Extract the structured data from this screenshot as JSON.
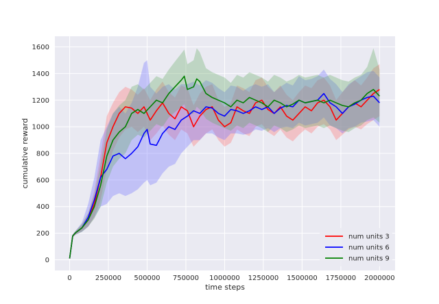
{
  "chart_data": {
    "type": "line",
    "title": "",
    "xlabel": "time steps",
    "ylabel": "cumulative reward",
    "xlim": [
      -95000,
      2100000
    ],
    "ylim": [
      -80,
      1680
    ],
    "x_ticks": [
      0,
      250000,
      500000,
      750000,
      1000000,
      1250000,
      1500000,
      1750000,
      2000000
    ],
    "y_ticks": [
      0,
      200,
      400,
      600,
      800,
      1000,
      1200,
      1400,
      1600
    ],
    "grid": true,
    "legend_position": "bottom-right",
    "series": [
      {
        "name": "num units 3",
        "color": "#ff0000",
        "band_color": "#ff6b6b",
        "x": [
          0,
          20000,
          40000,
          80000,
          120000,
          160000,
          200000,
          240000,
          280000,
          320000,
          360000,
          400000,
          440000,
          480000,
          520000,
          560000,
          600000,
          640000,
          680000,
          720000,
          760000,
          800000,
          840000,
          880000,
          920000,
          960000,
          1000000,
          1040000,
          1080000,
          1120000,
          1160000,
          1200000,
          1240000,
          1280000,
          1320000,
          1360000,
          1400000,
          1440000,
          1480000,
          1520000,
          1560000,
          1600000,
          1640000,
          1680000,
          1720000,
          1760000,
          1800000,
          1840000,
          1880000,
          1920000,
          1960000,
          2000000
        ],
        "y": [
          10,
          180,
          205,
          240,
          300,
          420,
          620,
          880,
          1000,
          1100,
          1150,
          1140,
          1100,
          1150,
          1050,
          1120,
          1180,
          1100,
          1060,
          1150,
          1120,
          1000,
          1080,
          1130,
          1150,
          1050,
          1000,
          1030,
          1150,
          1120,
          1100,
          1180,
          1200,
          1130,
          1100,
          1150,
          1080,
          1050,
          1100,
          1150,
          1120,
          1180,
          1200,
          1150,
          1050,
          1100,
          1150,
          1180,
          1150,
          1200,
          1250,
          1280
        ],
        "y_lower": [
          5,
          170,
          190,
          215,
          250,
          320,
          450,
          680,
          820,
          920,
          980,
          1000,
          960,
          1000,
          900,
          950,
          1010,
          940,
          900,
          980,
          950,
          850,
          900,
          950,
          980,
          900,
          850,
          880,
          980,
          950,
          930,
          1000,
          1020,
          960,
          930,
          980,
          920,
          890,
          940,
          980,
          950,
          1000,
          1020,
          980,
          900,
          940,
          980,
          1000,
          980,
          1020,
          1050,
          1080
        ],
        "y_upper": [
          15,
          190,
          215,
          265,
          350,
          520,
          790,
          1080,
          1180,
          1260,
          1300,
          1280,
          1240,
          1290,
          1200,
          1280,
          1340,
          1260,
          1220,
          1310,
          1290,
          1160,
          1250,
          1300,
          1320,
          1200,
          1150,
          1180,
          1310,
          1290,
          1260,
          1350,
          1370,
          1300,
          1260,
          1310,
          1240,
          1200,
          1260,
          1310,
          1290,
          1350,
          1370,
          1310,
          1200,
          1260,
          1310,
          1350,
          1310,
          1370,
          1440,
          1470
        ]
      },
      {
        "name": "num units 6",
        "color": "#0000ff",
        "band_color": "#6b6bff",
        "x": [
          0,
          20000,
          40000,
          80000,
          120000,
          160000,
          200000,
          240000,
          280000,
          320000,
          360000,
          400000,
          440000,
          480000,
          500000,
          520000,
          560000,
          600000,
          640000,
          680000,
          720000,
          760000,
          800000,
          840000,
          880000,
          920000,
          960000,
          1000000,
          1040000,
          1080000,
          1120000,
          1160000,
          1200000,
          1240000,
          1280000,
          1320000,
          1360000,
          1400000,
          1440000,
          1480000,
          1520000,
          1560000,
          1600000,
          1640000,
          1680000,
          1720000,
          1760000,
          1800000,
          1840000,
          1880000,
          1920000,
          1960000,
          2000000
        ],
        "y": [
          10,
          180,
          205,
          240,
          320,
          450,
          620,
          680,
          780,
          800,
          760,
          800,
          850,
          950,
          980,
          870,
          860,
          950,
          1000,
          980,
          1050,
          1080,
          1120,
          1100,
          1150,
          1140,
          1100,
          1080,
          1130,
          1120,
          1100,
          1120,
          1150,
          1130,
          1150,
          1100,
          1140,
          1160,
          1150,
          1200,
          1180,
          1190,
          1200,
          1250,
          1180,
          1150,
          1100,
          1150,
          1170,
          1200,
          1220,
          1230,
          1180
        ],
        "y_lower": [
          5,
          170,
          190,
          210,
          250,
          320,
          400,
          420,
          480,
          500,
          480,
          500,
          530,
          580,
          600,
          560,
          580,
          650,
          700,
          720,
          800,
          850,
          900,
          900,
          950,
          950,
          920,
          900,
          950,
          950,
          940,
          950,
          980,
          970,
          990,
          960,
          990,
          1000,
          990,
          1030,
          1010,
          1020,
          1030,
          1070,
          1010,
          990,
          950,
          990,
          1000,
          1030,
          1040,
          1050,
          1000
        ],
        "y_upper": [
          15,
          190,
          220,
          280,
          420,
          620,
          900,
          1000,
          1100,
          1150,
          1100,
          1180,
          1300,
          1480,
          1500,
          1300,
          1250,
          1300,
          1320,
          1280,
          1320,
          1320,
          1340,
          1310,
          1350,
          1330,
          1290,
          1260,
          1310,
          1300,
          1270,
          1300,
          1320,
          1300,
          1320,
          1260,
          1300,
          1330,
          1310,
          1380,
          1350,
          1360,
          1380,
          1430,
          1360,
          1320,
          1260,
          1320,
          1350,
          1380,
          1410,
          1420,
          1370
        ]
      },
      {
        "name": "num units 9",
        "color": "#008000",
        "band_color": "#5fa85f",
        "x": [
          0,
          20000,
          40000,
          80000,
          120000,
          160000,
          200000,
          240000,
          280000,
          320000,
          360000,
          400000,
          440000,
          480000,
          520000,
          560000,
          600000,
          640000,
          680000,
          720000,
          740000,
          760000,
          800000,
          820000,
          840000,
          880000,
          920000,
          960000,
          1000000,
          1040000,
          1080000,
          1120000,
          1160000,
          1200000,
          1240000,
          1280000,
          1320000,
          1360000,
          1400000,
          1440000,
          1480000,
          1520000,
          1560000,
          1600000,
          1640000,
          1680000,
          1720000,
          1760000,
          1800000,
          1840000,
          1880000,
          1920000,
          1960000,
          2000000
        ],
        "y": [
          10,
          180,
          205,
          240,
          300,
          400,
          560,
          780,
          900,
          960,
          1000,
          1100,
          1130,
          1100,
          1150,
          1200,
          1180,
          1250,
          1300,
          1350,
          1380,
          1280,
          1300,
          1360,
          1340,
          1250,
          1220,
          1200,
          1180,
          1150,
          1200,
          1180,
          1220,
          1200,
          1180,
          1150,
          1200,
          1180,
          1150,
          1170,
          1200,
          1180,
          1190,
          1200,
          1180,
          1200,
          1180,
          1160,
          1150,
          1180,
          1200,
          1250,
          1280,
          1230
        ],
        "y_lower": [
          5,
          170,
          190,
          210,
          250,
          310,
          400,
          580,
          700,
          760,
          800,
          900,
          940,
          920,
          970,
          1020,
          1000,
          1070,
          1110,
          1150,
          1170,
          1090,
          1100,
          1150,
          1130,
          1060,
          1030,
          1010,
          990,
          970,
          1010,
          990,
          1030,
          1010,
          990,
          960,
          1010,
          990,
          960,
          980,
          1010,
          990,
          1000,
          1010,
          990,
          1010,
          990,
          970,
          960,
          990,
          1010,
          1050,
          1070,
          1030
        ],
        "y_upper": [
          15,
          190,
          220,
          270,
          350,
          490,
          720,
          980,
          1100,
          1160,
          1200,
          1300,
          1320,
          1280,
          1330,
          1380,
          1360,
          1430,
          1490,
          1550,
          1580,
          1470,
          1500,
          1590,
          1560,
          1440,
          1410,
          1390,
          1370,
          1330,
          1390,
          1370,
          1410,
          1390,
          1370,
          1340,
          1390,
          1370,
          1340,
          1360,
          1390,
          1370,
          1380,
          1390,
          1370,
          1390,
          1370,
          1350,
          1340,
          1370,
          1390,
          1450,
          1590,
          1430
        ]
      }
    ]
  }
}
